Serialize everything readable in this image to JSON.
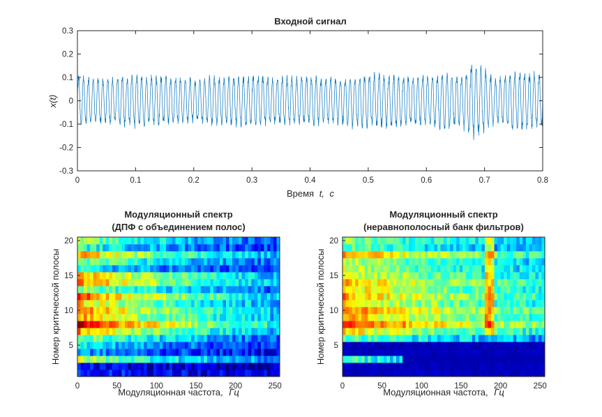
{
  "chart_data": [
    {
      "type": "line",
      "title": "Входной сигнал",
      "xlabel_prefix": "Время",
      "xlabel_var": "t,",
      "xlabel_unit": "с",
      "ylabel": "x(t)",
      "xlim": [
        0,
        0.8
      ],
      "ylim": [
        -0.3,
        0.3
      ],
      "xticks": [
        "0",
        "0.1",
        "0.2",
        "0.3",
        "0.4",
        "0.5",
        "0.6",
        "0.7",
        "0.8"
      ],
      "yticks": [
        "0.3",
        "0.2",
        "0.1",
        "0",
        "-0.1",
        "-0.2",
        "-0.3"
      ],
      "line_color": "#0072BD",
      "series": [
        {
          "envelope_t": [
            0,
            0.05,
            0.1,
            0.15,
            0.2,
            0.25,
            0.3,
            0.35,
            0.4,
            0.45,
            0.5,
            0.55,
            0.6,
            0.63,
            0.66,
            0.68,
            0.7,
            0.72,
            0.75,
            0.78,
            0.8
          ],
          "envelope_amp": [
            0.13,
            0.12,
            0.14,
            0.13,
            0.12,
            0.13,
            0.14,
            0.13,
            0.13,
            0.12,
            0.15,
            0.14,
            0.13,
            0.16,
            0.13,
            0.21,
            0.17,
            0.12,
            0.16,
            0.15,
            0.14
          ]
        }
      ]
    },
    {
      "type": "heatmap",
      "title_line1": "Модуляционный спектр",
      "title_line2": "(ДПФ с объединением полос)",
      "xlabel_prefix": "Модуляционная частота,",
      "xlabel_unit": "Гц",
      "ylabel": "Номер критической полосы",
      "xlim": [
        0,
        256
      ],
      "ylim": [
        0.5,
        20.5
      ],
      "xticks": [
        "0",
        "50",
        "100",
        "150",
        "200",
        "250"
      ],
      "yticks": [
        "20",
        "15",
        "10",
        "5"
      ],
      "colormap": "jet",
      "band_profile": [
        0.18,
        0.12,
        0.6,
        0.3,
        0.4,
        0.55,
        0.75,
        0.95,
        0.75,
        0.8,
        0.7,
        0.85,
        0.55,
        0.8,
        0.75,
        0.4,
        0.55,
        0.75,
        0.45,
        0.55
      ],
      "decay_to": 0.4
    },
    {
      "type": "heatmap",
      "title_line1": "Модуляционный спектр",
      "title_line2": "(неравнополосный банк фильтров)",
      "xlabel_prefix": "Модуляционная частота,",
      "xlabel_unit": "Гц",
      "ylabel": "Номер критической полосы",
      "xlim": [
        0,
        256
      ],
      "ylim": [
        0.5,
        20.5
      ],
      "xticks": [
        "0",
        "50",
        "100",
        "150",
        "200",
        "250"
      ],
      "yticks": [
        "20",
        "15",
        "10",
        "5"
      ],
      "colormap": "jet",
      "band_profile": [
        0.05,
        0.05,
        0.45,
        0.3,
        0.05,
        0.5,
        0.7,
        0.9,
        0.75,
        0.8,
        0.7,
        0.75,
        0.7,
        0.75,
        0.65,
        0.6,
        0.6,
        0.75,
        0.5,
        0.55
      ],
      "decay_to": 0.55
    }
  ]
}
